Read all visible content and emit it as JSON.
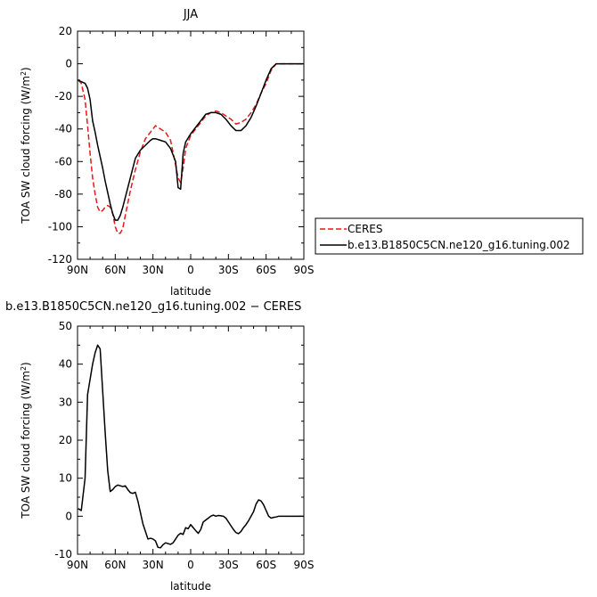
{
  "chart_data": [
    {
      "type": "line",
      "title": "JJA",
      "xlabel": "latitude",
      "ylabel": "TOA SW cloud forcing (W/m",
      "ylabel_sup": "2",
      "ylabel_end": ")",
      "xlim": [
        90,
        -90
      ],
      "ylim": [
        -120,
        20
      ],
      "xticks": [
        90,
        60,
        30,
        0,
        -30,
        -60,
        -90
      ],
      "xtick_labels": [
        "90N",
        "60N",
        "30N",
        "0",
        "30S",
        "60S",
        "90S"
      ],
      "yticks": [
        -120,
        -100,
        -80,
        -60,
        -40,
        -20,
        0,
        20
      ],
      "ytick_labels": [
        "-120",
        "-100",
        "-80",
        "-60",
        "-40",
        "-20",
        "0",
        "20"
      ],
      "grid": false,
      "legend": "outside-right",
      "series": [
        {
          "name": "CERES",
          "color": "#e41a1c",
          "dash": "dashed",
          "x": [
            89.5,
            87,
            84,
            82,
            80,
            78,
            76,
            74,
            72,
            70,
            68,
            66,
            64,
            62,
            60,
            58,
            56,
            54,
            52,
            48,
            44,
            40,
            36,
            32,
            30,
            28,
            24,
            20,
            16,
            12,
            10,
            8,
            6,
            4,
            0,
            -4,
            -8,
            -12,
            -16,
            -20,
            -24,
            -28,
            -32,
            -36,
            -40,
            -44,
            -48,
            -52,
            -56,
            -60,
            -64,
            -68,
            -72,
            -76,
            -80,
            -84,
            -89.5
          ],
          "y": [
            -10,
            -12,
            -22,
            -38,
            -55,
            -70,
            -80,
            -88,
            -91,
            -90,
            -88,
            -87,
            -88,
            -92,
            -100,
            -104,
            -104,
            -101,
            -93,
            -78,
            -65,
            -54,
            -46,
            -42,
            -40,
            -38,
            -40,
            -42,
            -47,
            -62,
            -70,
            -73,
            -64,
            -52,
            -44,
            -40,
            -36,
            -32,
            -30,
            -29,
            -30,
            -32,
            -34,
            -37,
            -36,
            -34,
            -30,
            -25,
            -18,
            -12,
            -4,
            0,
            0,
            0,
            0,
            0,
            0
          ]
        },
        {
          "name": "b.e13.B1850C5CN.ne120_g16.tuning.002",
          "color": "#000000",
          "dash": "solid",
          "x": [
            89.5,
            87,
            84,
            82,
            80,
            78,
            76,
            74,
            72,
            70,
            68,
            66,
            64,
            62,
            60,
            58,
            56,
            54,
            52,
            48,
            44,
            40,
            36,
            32,
            30,
            28,
            24,
            20,
            16,
            12,
            10,
            8,
            6,
            4,
            0,
            -4,
            -8,
            -12,
            -16,
            -20,
            -24,
            -28,
            -32,
            -36,
            -40,
            -44,
            -48,
            -52,
            -56,
            -60,
            -64,
            -68,
            -72,
            -76,
            -80,
            -84,
            -89.5
          ],
          "y": [
            -10,
            -11,
            -12,
            -15,
            -22,
            -35,
            -42,
            -50,
            -57,
            -64,
            -72,
            -79,
            -86,
            -92,
            -96,
            -96,
            -93,
            -88,
            -82,
            -70,
            -58,
            -53,
            -50,
            -47,
            -46,
            -46,
            -47,
            -48,
            -52,
            -60,
            -76,
            -77,
            -55,
            -48,
            -43,
            -39,
            -35,
            -31,
            -30,
            -30,
            -31,
            -34,
            -38,
            -41,
            -41,
            -38,
            -33,
            -26,
            -18,
            -10,
            -3,
            0,
            0,
            0,
            0,
            0,
            0
          ]
        }
      ]
    },
    {
      "type": "line",
      "title": "b.e13.B1850C5CN.ne120_g16.tuning.002 − CERES",
      "xlabel": "latitude",
      "ylabel": "TOA SW cloud forcing (W/m",
      "ylabel_sup": "2",
      "ylabel_end": ")",
      "xlim": [
        90,
        -90
      ],
      "ylim": [
        -10,
        50
      ],
      "xticks": [
        90,
        60,
        30,
        0,
        -30,
        -60,
        -90
      ],
      "xtick_labels": [
        "90N",
        "60N",
        "30N",
        "0",
        "30S",
        "60S",
        "90S"
      ],
      "yticks": [
        -10,
        0,
        10,
        20,
        30,
        40,
        50
      ],
      "ytick_labels": [
        "-10",
        "0",
        "10",
        "20",
        "30",
        "40",
        "50"
      ],
      "grid": false,
      "series": [
        {
          "color": "#000000",
          "dash": "solid",
          "x": [
            89.5,
            87,
            84,
            82,
            80,
            78,
            76,
            74,
            72,
            70,
            68,
            66,
            64,
            62,
            60,
            58,
            56,
            54,
            52,
            50,
            48,
            46,
            44,
            42,
            40,
            38,
            36,
            34,
            32,
            30,
            28,
            26,
            24,
            22,
            20,
            18,
            16,
            14,
            12,
            10,
            8,
            6,
            4,
            2,
            0,
            -2,
            -4,
            -6,
            -8,
            -10,
            -12,
            -14,
            -16,
            -18,
            -20,
            -22,
            -24,
            -26,
            -28,
            -30,
            -32,
            -34,
            -36,
            -38,
            -40,
            -42,
            -44,
            -46,
            -48,
            -50,
            -52,
            -54,
            -56,
            -58,
            -60,
            -62,
            -64,
            -66,
            -68,
            -70,
            -74,
            -78,
            -82,
            -86,
            -89.5
          ],
          "y": [
            2,
            1.5,
            10,
            32,
            36,
            40,
            43,
            45,
            44,
            33,
            22,
            12,
            6.5,
            7,
            7.8,
            8.2,
            8,
            7.8,
            8,
            7,
            6.2,
            6,
            6.3,
            4,
            1,
            -2,
            -4,
            -6,
            -5.8,
            -6,
            -6.5,
            -8.2,
            -8.3,
            -7.5,
            -7,
            -7.2,
            -7.4,
            -7,
            -6,
            -5,
            -4.5,
            -4.8,
            -3,
            -3.3,
            -2.2,
            -3,
            -3.8,
            -4.5,
            -3.5,
            -1.5,
            -1,
            -0.5,
            0,
            0.3,
            0,
            0.2,
            0.1,
            0,
            -0.5,
            -1.5,
            -2.5,
            -3.5,
            -4.3,
            -4.6,
            -4,
            -3,
            -2.2,
            -1.2,
            0,
            1.2,
            3.2,
            4.3,
            4,
            3,
            1.5,
            0,
            -0.5,
            -0.3,
            -0.2,
            0,
            0,
            0,
            0,
            0,
            0
          ]
        }
      ]
    }
  ]
}
